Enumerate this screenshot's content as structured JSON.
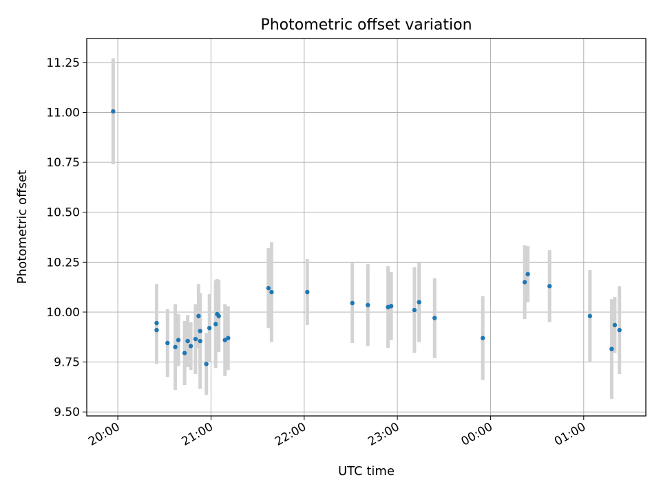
{
  "chart_data": {
    "type": "scatter",
    "title": "Photometric offset variation",
    "xlabel": "UTC time",
    "ylabel": "Photometric offset",
    "x_axis": {
      "kind": "time",
      "range": [
        "19:40",
        "01:40"
      ],
      "ticks": [
        "20:00",
        "21:00",
        "22:00",
        "23:00",
        "00:00",
        "01:00"
      ]
    },
    "y_axis": {
      "range": [
        9.48,
        11.37
      ],
      "ticks": [
        "9.50",
        "9.75",
        "10.00",
        "10.25",
        "10.50",
        "10.75",
        "11.00",
        "11.25"
      ]
    },
    "grid": true,
    "colors": {
      "point": "#1f77b4",
      "errorbar": "#d3d3d3",
      "grid": "#b0b0b0"
    },
    "points": [
      {
        "t": "19:57",
        "y": 11.005,
        "err": 0.265
      },
      {
        "t": "20:25",
        "y": 9.945,
        "err": 0.195
      },
      {
        "t": "20:25",
        "y": 9.91,
        "err": 0.17
      },
      {
        "t": "20:32",
        "y": 9.845,
        "err": 0.17
      },
      {
        "t": "20:37",
        "y": 9.825,
        "err": 0.215
      },
      {
        "t": "20:39",
        "y": 9.86,
        "err": 0.13
      },
      {
        "t": "20:43",
        "y": 9.795,
        "err": 0.16
      },
      {
        "t": "20:45",
        "y": 9.855,
        "err": 0.13
      },
      {
        "t": "20:47",
        "y": 9.83,
        "err": 0.12
      },
      {
        "t": "20:50",
        "y": 9.865,
        "err": 0.175
      },
      {
        "t": "20:52",
        "y": 9.98,
        "err": 0.16
      },
      {
        "t": "20:53",
        "y": 9.905,
        "err": 0.19
      },
      {
        "t": "20:53",
        "y": 9.855,
        "err": 0.24
      },
      {
        "t": "20:57",
        "y": 9.74,
        "err": 0.155
      },
      {
        "t": "20:59",
        "y": 9.92,
        "err": 0.17
      },
      {
        "t": "21:03",
        "y": 9.94,
        "err": 0.22
      },
      {
        "t": "21:04",
        "y": 9.99,
        "err": 0.175
      },
      {
        "t": "21:05",
        "y": 9.98,
        "err": 0.18
      },
      {
        "t": "21:09",
        "y": 9.86,
        "err": 0.18
      },
      {
        "t": "21:11",
        "y": 9.87,
        "err": 0.16
      },
      {
        "t": "21:37",
        "y": 10.12,
        "err": 0.2
      },
      {
        "t": "21:39",
        "y": 10.1,
        "err": 0.25
      },
      {
        "t": "22:02",
        "y": 10.1,
        "err": 0.165
      },
      {
        "t": "22:31",
        "y": 10.045,
        "err": 0.2
      },
      {
        "t": "22:41",
        "y": 10.035,
        "err": 0.205
      },
      {
        "t": "22:54",
        "y": 10.025,
        "err": 0.205
      },
      {
        "t": "22:56",
        "y": 10.03,
        "err": 0.17
      },
      {
        "t": "23:11",
        "y": 10.01,
        "err": 0.215
      },
      {
        "t": "23:14",
        "y": 10.05,
        "err": 0.2
      },
      {
        "t": "23:24",
        "y": 9.97,
        "err": 0.2
      },
      {
        "t": "23:55",
        "y": 9.87,
        "err": 0.21
      },
      {
        "t": "00:22",
        "y": 10.15,
        "err": 0.185
      },
      {
        "t": "00:24",
        "y": 10.19,
        "err": 0.14
      },
      {
        "t": "00:38",
        "y": 10.13,
        "err": 0.18
      },
      {
        "t": "01:04",
        "y": 9.98,
        "err": 0.23
      },
      {
        "t": "01:18",
        "y": 9.815,
        "err": 0.25
      },
      {
        "t": "01:20",
        "y": 9.935,
        "err": 0.14
      },
      {
        "t": "01:23",
        "y": 9.91,
        "err": 0.22
      }
    ]
  }
}
